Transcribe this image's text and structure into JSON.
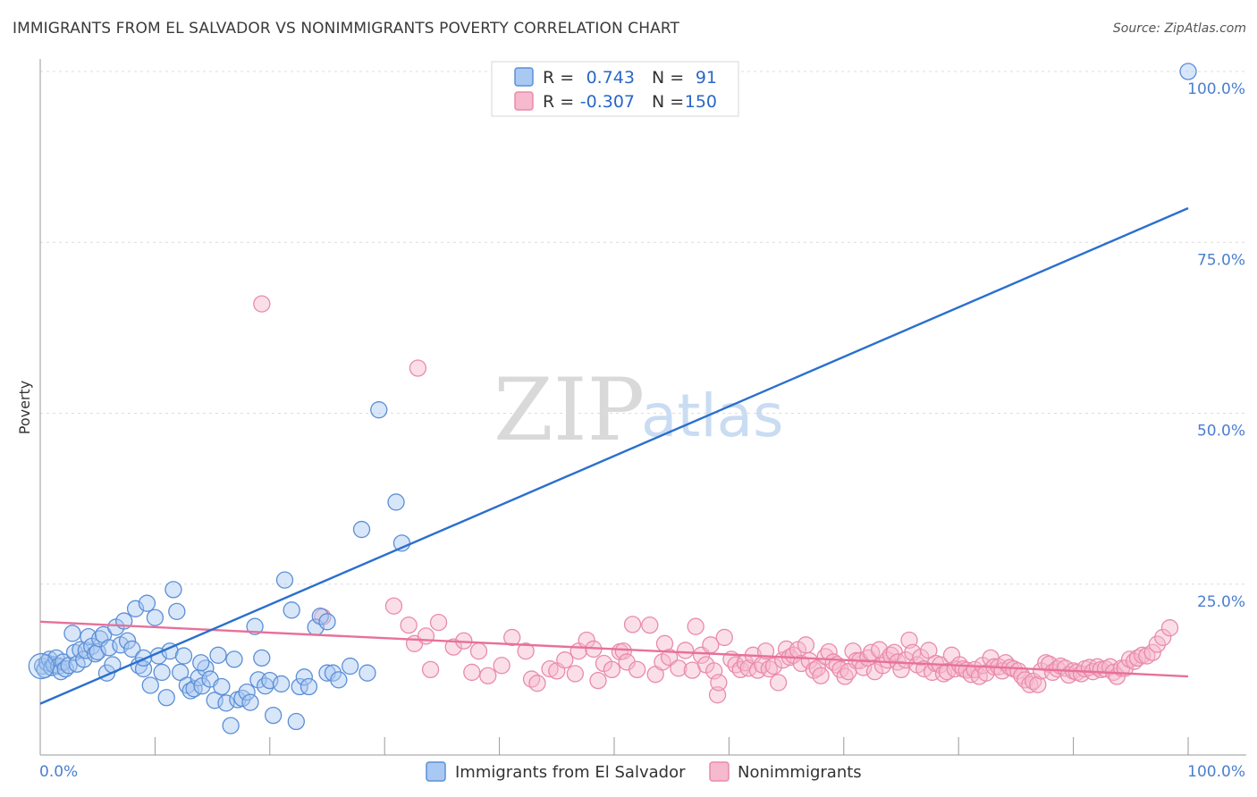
{
  "title": "IMMIGRANTS FROM EL SALVADOR VS NONIMMIGRANTS POVERTY CORRELATION CHART",
  "source": "Source: ZipAtlas.com",
  "watermark": {
    "zip": "ZIP",
    "atlas": "atlas"
  },
  "colors": {
    "blue_fill": "#a9c8f2",
    "blue_stroke": "#5b8fd6",
    "blue_line": "#2a6fce",
    "pink_fill": "#f6b9cd",
    "pink_stroke": "#e98bab",
    "pink_line": "#e8709a",
    "tick_text": "#4a7fcf"
  },
  "legend": {
    "rows": [
      {
        "r_label": "R =",
        "r_value": "0.743",
        "n_label": "N =",
        "n_value": "91"
      },
      {
        "r_label": "R =",
        "r_value": "-0.307",
        "n_label": "N =",
        "n_value": "150"
      }
    ]
  },
  "chart_data": {
    "type": "scatter",
    "title": "IMMIGRANTS FROM EL SALVADOR VS NONIMMIGRANTS POVERTY CORRELATION CHART",
    "xlabel": "",
    "ylabel": "Poverty",
    "xlim": [
      0,
      100
    ],
    "ylim": [
      0,
      100
    ],
    "x_tick_labels": [
      "0.0%",
      "100.0%"
    ],
    "y_tick_labels": [
      "25.0%",
      "50.0%",
      "75.0%",
      "100.0%"
    ],
    "y_ticks": [
      25,
      50,
      75,
      100
    ],
    "legend_position": "bottom",
    "series": [
      {
        "name": "Immigrants from El Salvador",
        "r": 0.743,
        "n": 91,
        "trend": {
          "x": [
            0,
            100
          ],
          "y": [
            7.5,
            80.0
          ]
        },
        "points": [
          [
            0.2,
            13.0
          ],
          [
            0.4,
            12.5
          ],
          [
            0.6,
            13.5
          ],
          [
            0.8,
            14.0
          ],
          [
            1.0,
            12.8
          ],
          [
            1.2,
            13.2
          ],
          [
            1.4,
            14.2
          ],
          [
            1.6,
            13.0
          ],
          [
            1.8,
            12.2
          ],
          [
            2.0,
            13.6
          ],
          [
            2.2,
            12.6
          ],
          [
            2.5,
            13.1
          ],
          [
            2.8,
            17.8
          ],
          [
            3.0,
            15.0
          ],
          [
            3.2,
            13.3
          ],
          [
            3.5,
            15.4
          ],
          [
            3.8,
            14.0
          ],
          [
            4.0,
            15.3
          ],
          [
            4.2,
            17.3
          ],
          [
            4.5,
            15.9
          ],
          [
            4.8,
            14.8
          ],
          [
            5.0,
            15.1
          ],
          [
            5.2,
            17.0
          ],
          [
            5.5,
            17.6
          ],
          [
            5.8,
            12.0
          ],
          [
            6.0,
            15.7
          ],
          [
            6.3,
            13.2
          ],
          [
            6.6,
            18.7
          ],
          [
            7.0,
            16.1
          ],
          [
            7.3,
            19.6
          ],
          [
            7.6,
            16.7
          ],
          [
            8.0,
            15.5
          ],
          [
            8.3,
            21.4
          ],
          [
            8.6,
            13.1
          ],
          [
            9.0,
            12.6
          ],
          [
            9.3,
            22.2
          ],
          [
            9.6,
            10.2
          ],
          [
            10.0,
            20.1
          ],
          [
            10.3,
            14.5
          ],
          [
            10.6,
            12.1
          ],
          [
            11.0,
            8.4
          ],
          [
            11.3,
            15.2
          ],
          [
            11.6,
            24.2
          ],
          [
            11.9,
            21.0
          ],
          [
            12.2,
            12.1
          ],
          [
            12.5,
            14.5
          ],
          [
            12.8,
            10.2
          ],
          [
            13.1,
            9.4
          ],
          [
            13.4,
            9.7
          ],
          [
            13.8,
            11.3
          ],
          [
            14.1,
            10.1
          ],
          [
            14.4,
            12.7
          ],
          [
            14.8,
            11.1
          ],
          [
            15.2,
            8.0
          ],
          [
            15.5,
            14.6
          ],
          [
            15.8,
            10.0
          ],
          [
            16.2,
            7.6
          ],
          [
            16.6,
            4.3
          ],
          [
            16.9,
            14.0
          ],
          [
            17.2,
            8.1
          ],
          [
            17.6,
            8.3
          ],
          [
            18.0,
            9.2
          ],
          [
            18.3,
            7.7
          ],
          [
            18.7,
            18.8
          ],
          [
            19.0,
            11.0
          ],
          [
            19.3,
            14.2
          ],
          [
            19.6,
            10.1
          ],
          [
            20.0,
            10.9
          ],
          [
            20.3,
            5.8
          ],
          [
            21.0,
            10.4
          ],
          [
            21.3,
            25.6
          ],
          [
            21.9,
            21.2
          ],
          [
            22.6,
            10.0
          ],
          [
            22.3,
            4.9
          ],
          [
            23.0,
            11.4
          ],
          [
            23.4,
            10.0
          ],
          [
            24.0,
            18.7
          ],
          [
            24.4,
            20.3
          ],
          [
            25.0,
            12.0
          ],
          [
            25.5,
            12.0
          ],
          [
            26.0,
            11.0
          ],
          [
            25.0,
            19.5
          ],
          [
            27.0,
            13.0
          ],
          [
            28.0,
            33.0
          ],
          [
            28.5,
            12.0
          ],
          [
            29.5,
            50.5
          ],
          [
            31.0,
            37.0
          ],
          [
            31.5,
            31.0
          ],
          [
            14.0,
            13.5
          ],
          [
            9.0,
            14.2
          ],
          [
            100.0,
            100.0
          ]
        ]
      },
      {
        "name": "Nonimmigrants",
        "r": -0.307,
        "n": 150,
        "trend": {
          "x": [
            0,
            100
          ],
          "y": [
            19.5,
            11.5
          ]
        },
        "points": [
          [
            19.3,
            66.0
          ],
          [
            32.9,
            56.6
          ],
          [
            24.6,
            20.2
          ],
          [
            30.8,
            21.8
          ],
          [
            32.1,
            19.0
          ],
          [
            32.6,
            16.3
          ],
          [
            33.6,
            17.4
          ],
          [
            34.7,
            19.4
          ],
          [
            34.0,
            12.5
          ],
          [
            36.0,
            15.8
          ],
          [
            36.9,
            16.7
          ],
          [
            37.6,
            12.1
          ],
          [
            38.2,
            15.2
          ],
          [
            39.0,
            11.6
          ],
          [
            40.2,
            13.1
          ],
          [
            41.1,
            17.2
          ],
          [
            42.3,
            15.2
          ],
          [
            42.8,
            11.1
          ],
          [
            43.3,
            10.5
          ],
          [
            44.4,
            12.6
          ],
          [
            45.0,
            12.3
          ],
          [
            45.7,
            13.9
          ],
          [
            46.6,
            11.9
          ],
          [
            46.9,
            15.2
          ],
          [
            47.6,
            16.8
          ],
          [
            48.2,
            15.5
          ],
          [
            48.6,
            10.9
          ],
          [
            49.1,
            13.4
          ],
          [
            49.8,
            12.5
          ],
          [
            50.5,
            15.1
          ],
          [
            50.8,
            15.2
          ],
          [
            51.1,
            13.6
          ],
          [
            51.6,
            19.1
          ],
          [
            52.0,
            12.5
          ],
          [
            53.1,
            19.0
          ],
          [
            53.6,
            11.8
          ],
          [
            54.2,
            13.6
          ],
          [
            54.4,
            16.3
          ],
          [
            54.8,
            14.3
          ],
          [
            55.6,
            12.7
          ],
          [
            56.2,
            15.3
          ],
          [
            56.8,
            12.4
          ],
          [
            57.1,
            18.8
          ],
          [
            57.6,
            14.6
          ],
          [
            58.0,
            13.2
          ],
          [
            58.4,
            16.1
          ],
          [
            58.7,
            12.3
          ],
          [
            59.0,
            8.8
          ],
          [
            59.1,
            10.6
          ],
          [
            59.6,
            17.2
          ],
          [
            60.2,
            14.0
          ],
          [
            60.6,
            13.2
          ],
          [
            61.0,
            12.5
          ],
          [
            61.4,
            13.5
          ],
          [
            61.7,
            12.7
          ],
          [
            62.1,
            14.6
          ],
          [
            62.5,
            12.4
          ],
          [
            62.9,
            13.2
          ],
          [
            63.2,
            15.2
          ],
          [
            63.5,
            12.6
          ],
          [
            63.9,
            13.0
          ],
          [
            64.3,
            10.6
          ],
          [
            64.7,
            13.9
          ],
          [
            65.0,
            15.5
          ],
          [
            65.3,
            14.3
          ],
          [
            65.6,
            14.6
          ],
          [
            66.0,
            15.4
          ],
          [
            66.3,
            13.4
          ],
          [
            66.7,
            16.1
          ],
          [
            67.0,
            13.8
          ],
          [
            67.4,
            12.4
          ],
          [
            67.7,
            12.7
          ],
          [
            68.0,
            11.6
          ],
          [
            68.4,
            14.4
          ],
          [
            68.7,
            15.1
          ],
          [
            69.1,
            13.6
          ],
          [
            69.4,
            13.2
          ],
          [
            69.7,
            12.5
          ],
          [
            70.1,
            11.5
          ],
          [
            70.4,
            12.2
          ],
          [
            70.8,
            15.2
          ],
          [
            71.1,
            13.8
          ],
          [
            71.4,
            13.8
          ],
          [
            71.7,
            12.8
          ],
          [
            72.1,
            14.2
          ],
          [
            72.4,
            15.0
          ],
          [
            72.7,
            12.2
          ],
          [
            73.1,
            15.4
          ],
          [
            73.4,
            13.1
          ],
          [
            73.8,
            13.9
          ],
          [
            74.1,
            14.6
          ],
          [
            74.4,
            15.0
          ],
          [
            74.7,
            13.6
          ],
          [
            75.0,
            12.5
          ],
          [
            75.4,
            13.9
          ],
          [
            75.7,
            16.8
          ],
          [
            76.0,
            15.0
          ],
          [
            76.4,
            13.2
          ],
          [
            76.7,
            14.3
          ],
          [
            77.0,
            12.6
          ],
          [
            77.4,
            15.3
          ],
          [
            77.7,
            12.1
          ],
          [
            78.0,
            13.4
          ],
          [
            78.4,
            13.2
          ],
          [
            78.7,
            11.9
          ],
          [
            79.0,
            12.2
          ],
          [
            79.4,
            14.6
          ],
          [
            79.7,
            12.6
          ],
          [
            80.1,
            13.2
          ],
          [
            80.4,
            12.6
          ],
          [
            80.7,
            12.4
          ],
          [
            81.1,
            11.8
          ],
          [
            81.4,
            12.5
          ],
          [
            81.8,
            11.5
          ],
          [
            82.1,
            13.1
          ],
          [
            82.4,
            12.0
          ],
          [
            82.8,
            14.2
          ],
          [
            83.1,
            12.9
          ],
          [
            83.5,
            12.9
          ],
          [
            83.8,
            12.3
          ],
          [
            84.1,
            13.5
          ],
          [
            84.5,
            12.8
          ],
          [
            84.8,
            12.6
          ],
          [
            85.2,
            12.3
          ],
          [
            85.5,
            11.6
          ],
          [
            85.8,
            11.0
          ],
          [
            86.2,
            10.3
          ],
          [
            86.5,
            10.8
          ],
          [
            86.9,
            10.3
          ],
          [
            87.2,
            12.3
          ],
          [
            87.6,
            13.5
          ],
          [
            87.9,
            13.3
          ],
          [
            88.2,
            12.1
          ],
          [
            88.6,
            12.6
          ],
          [
            88.9,
            13.0
          ],
          [
            89.3,
            12.7
          ],
          [
            89.6,
            11.7
          ],
          [
            90.0,
            12.3
          ],
          [
            90.3,
            12.1
          ],
          [
            90.7,
            11.9
          ],
          [
            91.0,
            12.6
          ],
          [
            91.4,
            12.8
          ],
          [
            91.7,
            12.2
          ],
          [
            92.1,
            12.9
          ],
          [
            92.4,
            12.5
          ],
          [
            92.8,
            12.6
          ],
          [
            93.2,
            12.9
          ],
          [
            93.5,
            12.1
          ],
          [
            93.8,
            11.5
          ],
          [
            94.2,
            12.7
          ],
          [
            94.5,
            12.7
          ],
          [
            94.9,
            14.0
          ],
          [
            95.3,
            13.7
          ],
          [
            95.6,
            14.2
          ],
          [
            96.0,
            14.6
          ],
          [
            96.4,
            14.5
          ],
          [
            96.9,
            15.0
          ],
          [
            97.3,
            16.2
          ],
          [
            97.8,
            17.2
          ],
          [
            98.4,
            18.6
          ]
        ]
      }
    ]
  }
}
